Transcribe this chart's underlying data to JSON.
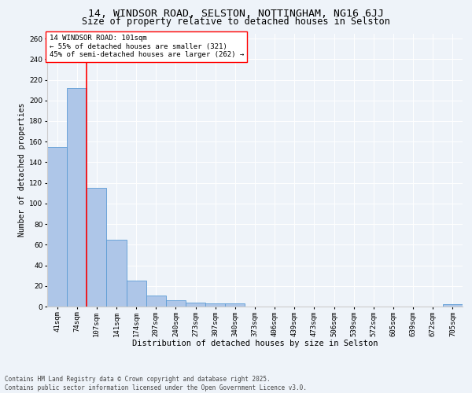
{
  "title1": "14, WINDSOR ROAD, SELSTON, NOTTINGHAM, NG16 6JJ",
  "title2": "Size of property relative to detached houses in Selston",
  "xlabel": "Distribution of detached houses by size in Selston",
  "ylabel": "Number of detached properties",
  "categories": [
    "41sqm",
    "74sqm",
    "107sqm",
    "141sqm",
    "174sqm",
    "207sqm",
    "240sqm",
    "273sqm",
    "307sqm",
    "340sqm",
    "373sqm",
    "406sqm",
    "439sqm",
    "473sqm",
    "506sqm",
    "539sqm",
    "572sqm",
    "605sqm",
    "639sqm",
    "672sqm",
    "705sqm"
  ],
  "values": [
    155,
    212,
    115,
    65,
    25,
    11,
    6,
    4,
    3,
    3,
    0,
    0,
    0,
    0,
    0,
    0,
    0,
    0,
    0,
    0,
    2
  ],
  "bar_color": "#aec6e8",
  "bar_edgecolor": "#5b9bd5",
  "bar_linewidth": 0.6,
  "vline_x": 1.5,
  "vline_color": "red",
  "vline_linewidth": 1.2,
  "annotation_text": "14 WINDSOR ROAD: 101sqm\n← 55% of detached houses are smaller (321)\n45% of semi-detached houses are larger (262) →",
  "annotation_box_color": "white",
  "annotation_box_edgecolor": "red",
  "yticks": [
    0,
    20,
    40,
    60,
    80,
    100,
    120,
    140,
    160,
    180,
    200,
    220,
    240,
    260
  ],
  "ylim": [
    0,
    265
  ],
  "bg_color": "#eef3f9",
  "footer_text": "Contains HM Land Registry data © Crown copyright and database right 2025.\nContains public sector information licensed under the Open Government Licence v3.0.",
  "title1_fontsize": 9.5,
  "title2_fontsize": 8.5,
  "annotation_fontsize": 6.5,
  "axis_fontsize": 6.5,
  "ylabel_fontsize": 7,
  "xlabel_fontsize": 7.5,
  "footer_fontsize": 5.5,
  "tick_fontsize": 6.5
}
